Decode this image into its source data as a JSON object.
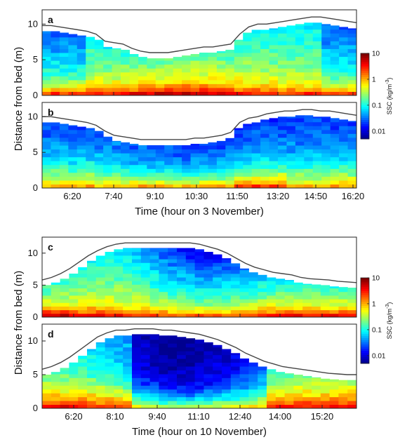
{
  "chart_data": [
    {
      "type": "heatmap",
      "panel_label": "a",
      "ylabel": "Distance from bed (m)",
      "xlabel": "",
      "xtick_labels": [
        "6:20",
        "7:40",
        "9:10",
        "10:30",
        "11:50",
        "13:20",
        "14:50",
        "16:20"
      ],
      "yticks": [
        0,
        5,
        10
      ],
      "ylim": [
        0,
        12
      ],
      "surface_m": [
        9.8,
        9.8,
        9.6,
        9.4,
        9.2,
        9.0,
        8.6,
        7.6,
        7.4,
        7.2,
        6.6,
        6.2,
        6.0,
        6.0,
        6.0,
        6.2,
        6.4,
        6.6,
        6.8,
        6.8,
        7.0,
        7.2,
        8.6,
        9.6,
        10.0,
        10.0,
        10.2,
        10.4,
        10.6,
        10.8,
        11.0,
        11.0,
        10.8,
        10.6,
        10.4,
        10.2
      ],
      "profile": "mixed"
    },
    {
      "type": "heatmap",
      "panel_label": "b",
      "ylabel": "",
      "xlabel": "Time (hour on 3 November)",
      "xtick_labels": [
        "6:20",
        "7:40",
        "9:10",
        "10:30",
        "11:50",
        "13:20",
        "14:50",
        "16:20"
      ],
      "yticks": [
        0,
        5,
        10
      ],
      "ylim": [
        0,
        12
      ],
      "surface_m": [
        10.0,
        10.0,
        9.8,
        9.6,
        9.4,
        9.2,
        8.8,
        8.0,
        7.4,
        7.2,
        7.0,
        6.8,
        6.8,
        6.8,
        6.8,
        6.8,
        6.8,
        7.0,
        7.0,
        7.2,
        7.4,
        7.8,
        9.2,
        9.8,
        10.0,
        10.4,
        10.6,
        10.8,
        10.8,
        11.0,
        11.0,
        10.8,
        10.8,
        10.6,
        10.4,
        10.2
      ],
      "profile": "stratified"
    },
    {
      "type": "heatmap",
      "panel_label": "c",
      "ylabel": "Distance from bed (m)",
      "xlabel": "",
      "xtick_labels": [
        "6:20",
        "8:10",
        "9:40",
        "11:10",
        "12:40",
        "14:00",
        "15:20"
      ],
      "yticks": [
        0,
        5,
        10
      ],
      "ylim": [
        0,
        12.5
      ],
      "surface_m": [
        5.8,
        6.2,
        6.8,
        7.6,
        8.6,
        9.6,
        10.4,
        11.0,
        11.4,
        11.6,
        11.6,
        11.6,
        11.6,
        11.6,
        11.6,
        11.6,
        11.6,
        11.4,
        11.0,
        10.6,
        10.0,
        9.2,
        8.4,
        7.8,
        7.4,
        7.0,
        6.8,
        6.6,
        6.2,
        6.0,
        5.9,
        5.8,
        5.6,
        5.5,
        5.4
      ],
      "profile": "mixed"
    },
    {
      "type": "heatmap",
      "panel_label": "d",
      "ylabel": "",
      "xlabel": "Time (hour on 10 November)",
      "xtick_labels": [
        "6:20",
        "8:10",
        "9:40",
        "11:10",
        "12:40",
        "14:00",
        "15:20"
      ],
      "yticks": [
        0,
        5,
        10
      ],
      "ylim": [
        0,
        12.5
      ],
      "surface_m": [
        5.8,
        6.2,
        6.8,
        7.6,
        8.6,
        9.6,
        10.6,
        11.2,
        11.6,
        11.6,
        11.8,
        11.8,
        11.8,
        11.6,
        11.6,
        11.4,
        11.2,
        11.0,
        10.6,
        10.2,
        9.6,
        9.0,
        8.2,
        7.6,
        7.0,
        6.6,
        6.2,
        6.0,
        5.8,
        5.6,
        5.4,
        5.2,
        5.1,
        5.0,
        5.0
      ],
      "profile": "stratified"
    }
  ],
  "colorbars": [
    {
      "label": "SSC (kg/m",
      "label_sup": "-3",
      "label_close": ")",
      "ticks": [
        "10",
        "1",
        "0.1",
        "0.01"
      ],
      "scale": "log",
      "range": [
        0.005,
        10
      ]
    },
    {
      "label": "SSC (kg/m",
      "label_sup": "-3",
      "label_close": ")",
      "ticks": [
        "10",
        "1",
        "0.1",
        "0.01"
      ],
      "scale": "log",
      "range": [
        0.005,
        10
      ]
    }
  ],
  "colormap": [
    "#00008f",
    "#0000ff",
    "#007fff",
    "#00ffff",
    "#7fff7f",
    "#ffff00",
    "#ff7f00",
    "#ff0000",
    "#7f0000"
  ]
}
